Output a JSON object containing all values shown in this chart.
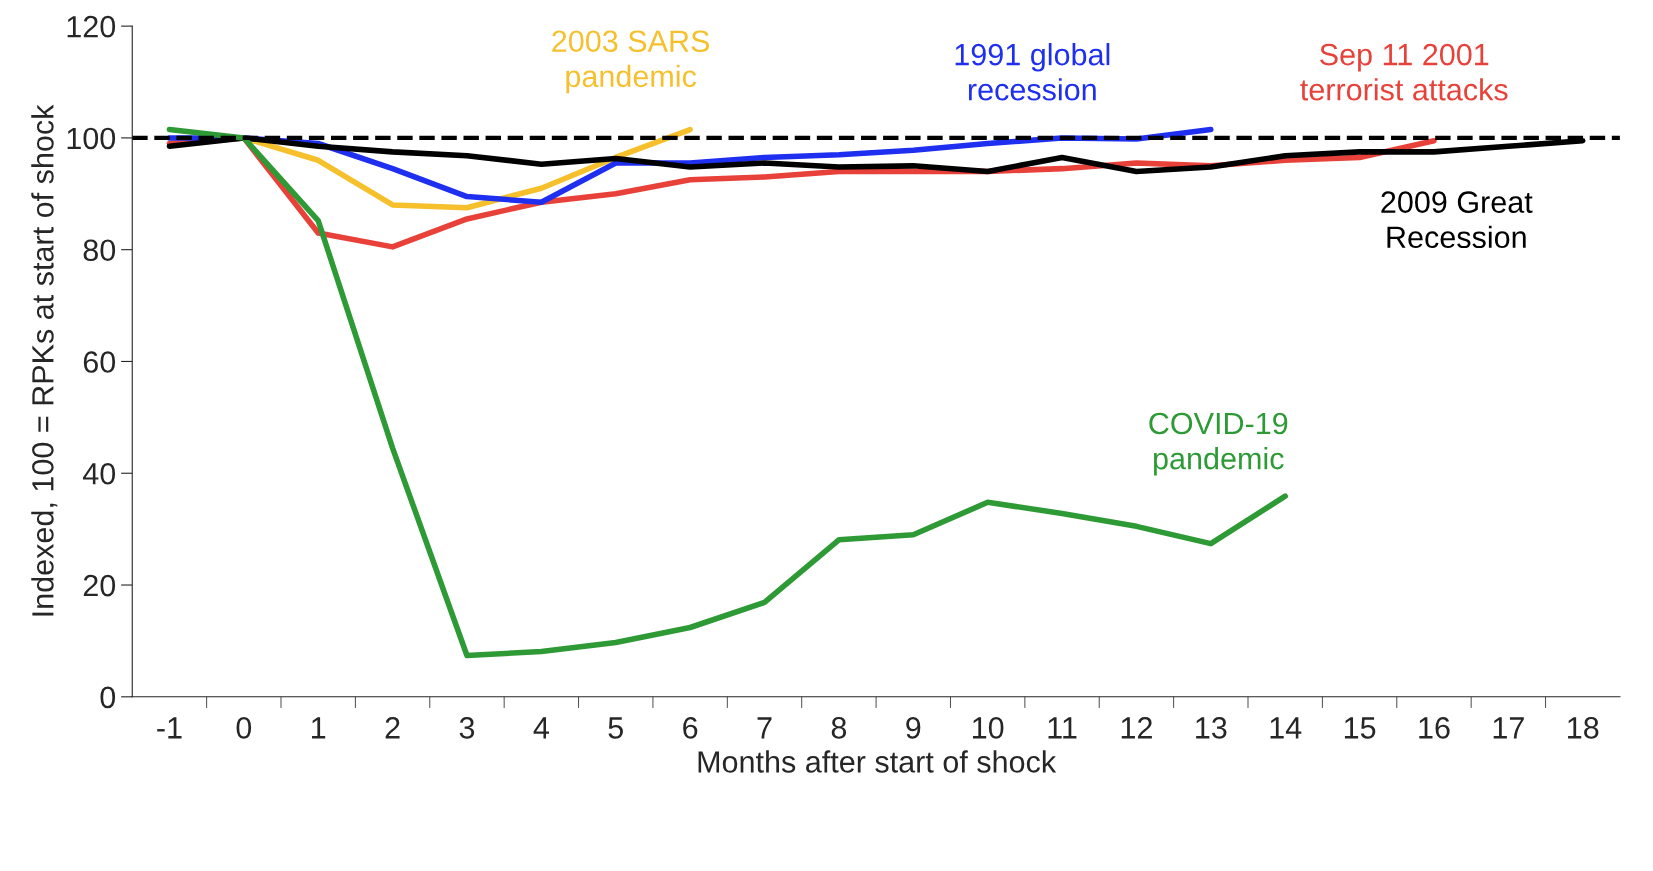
{
  "chart_data": {
    "type": "line",
    "xlabel": "Months after start of shock",
    "ylabel": "Indexed, 100 = RPKs at start of shock",
    "categories": [
      "-1",
      "0",
      "1",
      "2",
      "3",
      "4",
      "5",
      "6",
      "7",
      "8",
      "9",
      "10",
      "11",
      "12",
      "13",
      "14",
      "15",
      "16",
      "17",
      "18"
    ],
    "series": [
      {
        "name": "Sep 11 2001\nterrorist attacks",
        "color": "#e8413a",
        "values": [
          99,
          100,
          83,
          80.5,
          85.5,
          88.5,
          90,
          92.5,
          93,
          94,
          null,
          94,
          94.5,
          95.5,
          95,
          96,
          96.5,
          99.5,
          null,
          null
        ]
      },
      {
        "name": "2003 SARS\npandemic",
        "color": "#f5c02c",
        "values": [
          null,
          100,
          96,
          88,
          87.5,
          91,
          96.5,
          101.5,
          null,
          null,
          null,
          null,
          null,
          null,
          null,
          null,
          null,
          null,
          null,
          null
        ]
      },
      {
        "name": "1991 global\nrecession",
        "color": "#1f2ff0",
        "values": [
          100,
          100,
          99,
          94.5,
          89.5,
          88.5,
          95.5,
          95.5,
          96.5,
          97,
          97.8,
          99,
          100,
          99.8,
          101.5,
          null,
          null,
          null,
          null,
          null
        ]
      },
      {
        "name": "2009 Great\nRecession",
        "color": "#000000",
        "values": [
          98.5,
          100,
          98.5,
          97.5,
          96.8,
          95.3,
          96.3,
          94.8,
          95.5,
          94.8,
          95,
          94,
          96.5,
          94,
          94.8,
          96.8,
          97.5,
          97.5,
          98.5,
          99.5
        ]
      },
      {
        "name": "COVID-19\npandemic",
        "color": "#2e9a35",
        "values": [
          101.5,
          100,
          85.2,
          44.5,
          7.4,
          8.1,
          9.7,
          12.4,
          16.9,
          28.1,
          29,
          34.8,
          32.8,
          30.5,
          27.4,
          35.9,
          null,
          null,
          null,
          null
        ]
      }
    ],
    "ylim": [
      0,
      120
    ],
    "yticks": [
      0,
      20,
      40,
      60,
      80,
      100,
      120
    ],
    "ref_lines": [
      {
        "axis": "y",
        "value": 100,
        "color": "#000000",
        "line_style": "dashed"
      }
    ],
    "grid": false,
    "legend": false,
    "marker": "none",
    "line_style": "solid"
  }
}
